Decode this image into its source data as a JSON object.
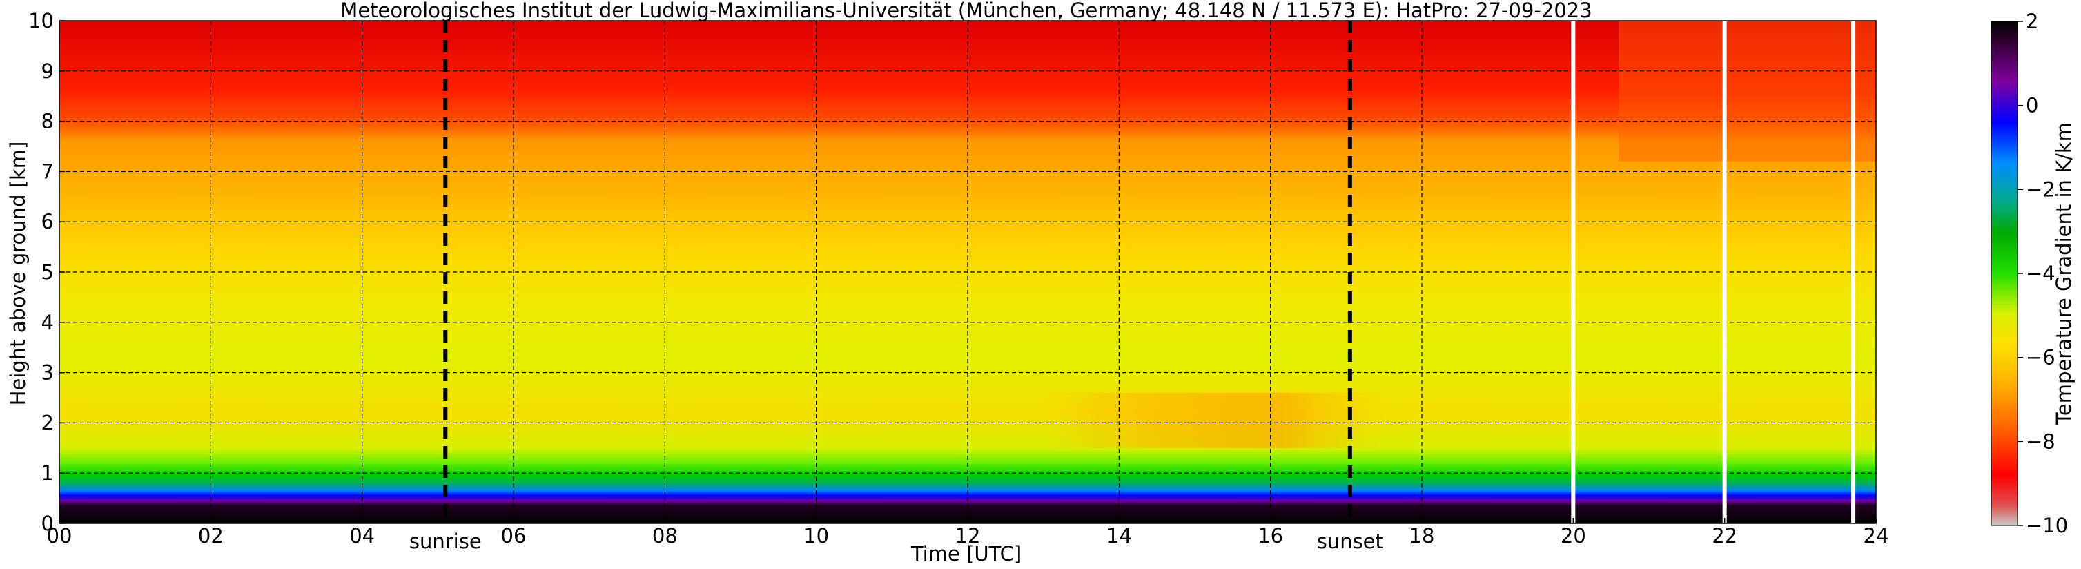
{
  "title": "Meteorologisches Institut der Ludwig-Maximilians-Universität (München, Germany; 48.148 N / 11.573 E):    HatPro: 27-09-2023",
  "chart_data": {
    "type": "heatmap",
    "title": "Meteorologisches Institut der Ludwig-Maximilians-Universität (München, Germany; 48.148 N / 11.573 E):    HatPro: 27-09-2023",
    "xlabel": "Time [UTC]",
    "ylabel": "Height above ground [km]",
    "xlim": [
      0,
      24
    ],
    "ylim": [
      0,
      10
    ],
    "x_ticks": [
      "00",
      "02",
      "04",
      "06",
      "08",
      "10",
      "12",
      "14",
      "16",
      "18",
      "20",
      "22",
      "24"
    ],
    "y_ticks": [
      "0",
      "1",
      "2",
      "3",
      "4",
      "5",
      "6",
      "7",
      "8",
      "9",
      "10"
    ],
    "grid": true,
    "colorbar": {
      "label": "Temperature Gradient in K/km",
      "range": [
        -10,
        2
      ],
      "ticks": [
        "2",
        "0",
        "−2",
        "−4",
        "−6",
        "−8",
        "−10"
      ],
      "colors": [
        "#c8c8c8",
        "#ff0000",
        "#ff6a00",
        "#ffb000",
        "#ffe000",
        "#d8f000",
        "#00d000",
        "#00aa77",
        "#008cff",
        "#0000ff",
        "#8000a0",
        "#000000"
      ]
    },
    "profile": [
      {
        "height": 0.1,
        "value": 2.0
      },
      {
        "height": 0.3,
        "value": 0.5
      },
      {
        "height": 0.45,
        "value": -1.5
      },
      {
        "height": 0.6,
        "value": -3.0
      },
      {
        "height": 0.8,
        "value": -4.5
      },
      {
        "height": 1.2,
        "value": -5.5
      },
      {
        "height": 2.0,
        "value": -6.5
      },
      {
        "height": 3.5,
        "value": -6.0
      },
      {
        "height": 5.0,
        "value": -6.5
      },
      {
        "height": 6.5,
        "value": -7.0
      },
      {
        "height": 7.5,
        "value": -7.7
      },
      {
        "height": 8.5,
        "value": -8.5
      },
      {
        "height": 10.0,
        "value": -9.0
      }
    ],
    "events": [
      {
        "label": "sunrise",
        "time": 5.1
      },
      {
        "label": "sunset",
        "time": 17.05
      }
    ],
    "data_gaps": [
      20.0,
      22.0,
      23.7
    ]
  }
}
